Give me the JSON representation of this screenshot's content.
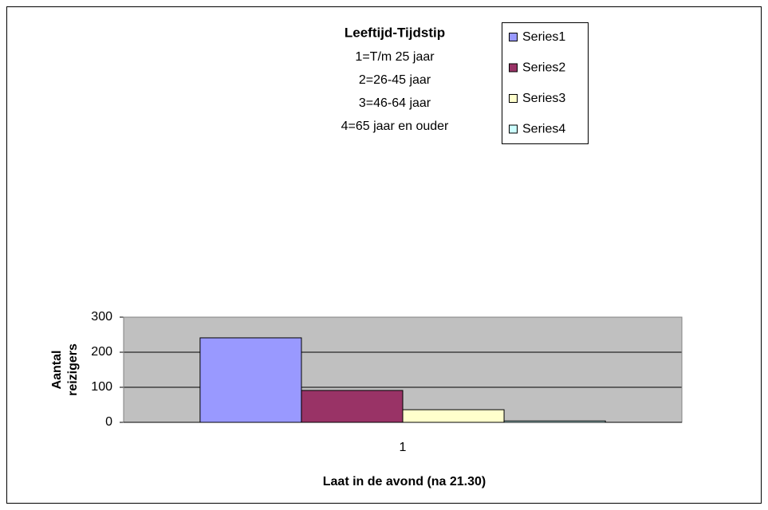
{
  "chart_data": {
    "type": "bar",
    "title": "Leeftijd-Tijdstip",
    "subtitle": [
      "1=T/m 25 jaar",
      "2=26-45 jaar",
      "3=46-64 jaar",
      "4=65 jaar en ouder"
    ],
    "xlabel": "Laat in de avond (na 21.30)",
    "ylabel": [
      "Aantal",
      "reizigers"
    ],
    "categories": [
      "1"
    ],
    "series": [
      {
        "name": "Series1",
        "color": "#9999ff",
        "values": [
          241
        ]
      },
      {
        "name": "Series2",
        "color": "#993366",
        "values": [
          91
        ]
      },
      {
        "name": "Series3",
        "color": "#ffffcc",
        "values": [
          36
        ]
      },
      {
        "name": "Series4",
        "color": "#ccffff",
        "values": [
          4
        ]
      }
    ],
    "ylim": [
      0,
      300
    ],
    "yticks": [
      0,
      100,
      200,
      300
    ],
    "grid": true,
    "legend": "top-right"
  }
}
